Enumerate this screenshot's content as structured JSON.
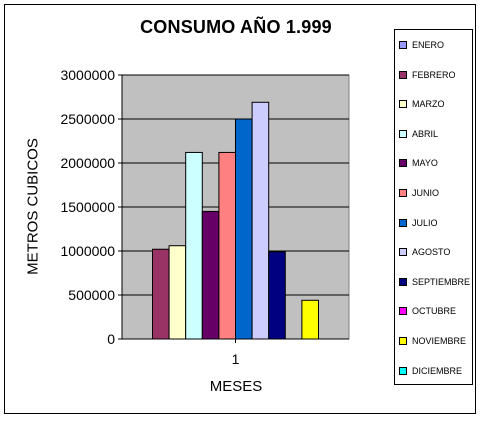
{
  "chart_data": {
    "type": "bar",
    "title": "CONSUMO AÑO 1.999",
    "xlabel": "MESES",
    "ylabel": "METROS CUBICOS",
    "categories": [
      "1"
    ],
    "ylim": [
      0,
      3000000
    ],
    "yticks": [
      "0",
      "500000",
      "1000000",
      "1500000",
      "2000000",
      "2500000",
      "3000000"
    ],
    "grid": true,
    "plot_background": "#C0C0C0",
    "legend_position": "right",
    "series": [
      {
        "name": "ENERO",
        "values": [
          0
        ],
        "color": "#9999FF"
      },
      {
        "name": "FEBRERO",
        "values": [
          1020000
        ],
        "color": "#993366"
      },
      {
        "name": "MARZO",
        "values": [
          1060000
        ],
        "color": "#FFFFCC"
      },
      {
        "name": "ABRIL",
        "values": [
          2120000
        ],
        "color": "#CCFFFF"
      },
      {
        "name": "MAYO",
        "values": [
          1450000
        ],
        "color": "#660066"
      },
      {
        "name": "JUNIO",
        "values": [
          2120000
        ],
        "color": "#FF8080"
      },
      {
        "name": "JULIO",
        "values": [
          2500000
        ],
        "color": "#0066CC"
      },
      {
        "name": "AGOSTO",
        "values": [
          2690000
        ],
        "color": "#CCCCFF"
      },
      {
        "name": "SEPTIEMBRE",
        "values": [
          990000
        ],
        "color": "#000080"
      },
      {
        "name": "OCTUBRE",
        "values": [
          0
        ],
        "color": "#FF00FF"
      },
      {
        "name": "NOVIEMBRE",
        "values": [
          440000
        ],
        "color": "#FFFF00"
      },
      {
        "name": "DICIEMBRE",
        "values": [
          0
        ],
        "color": "#00FFFF"
      }
    ]
  }
}
